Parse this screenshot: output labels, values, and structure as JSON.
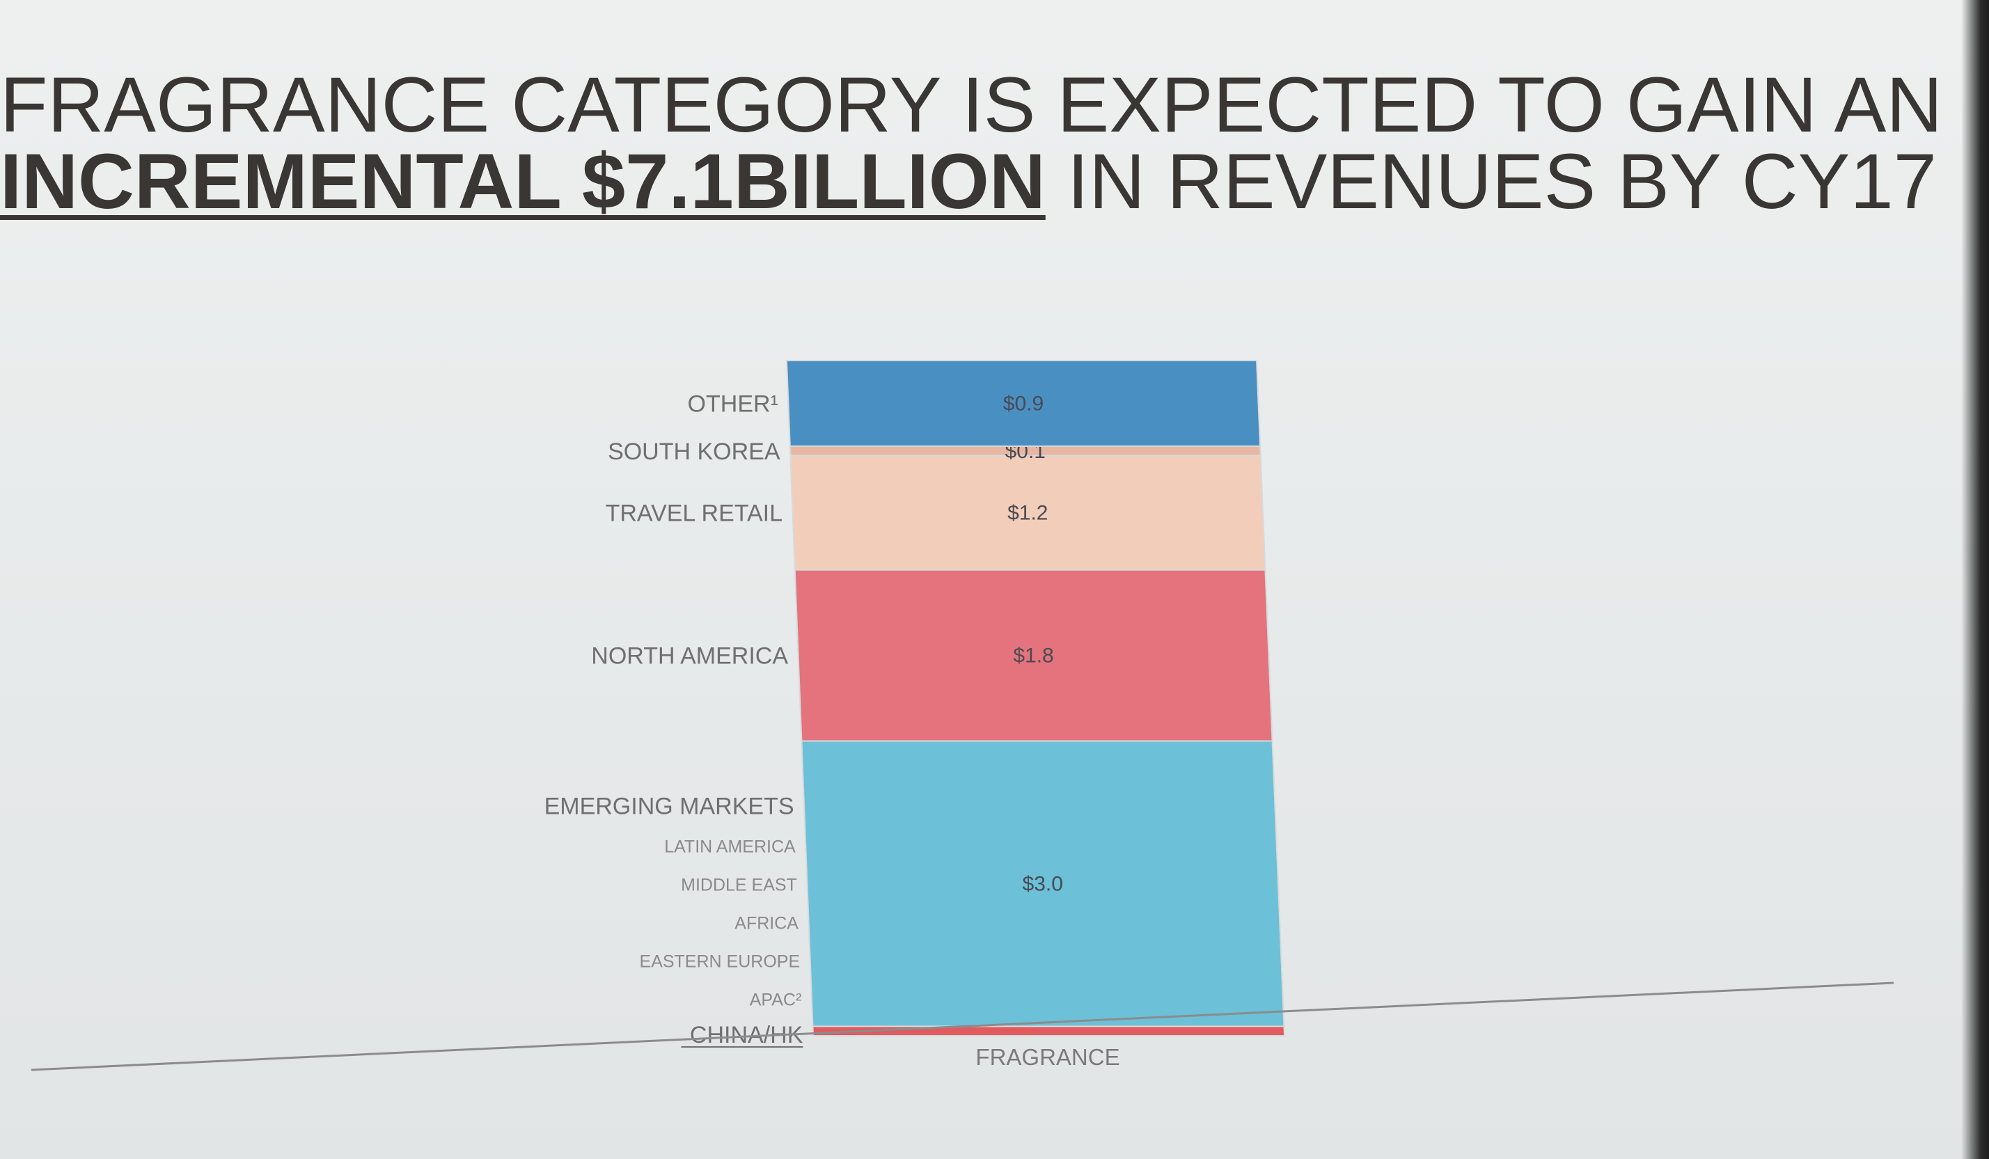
{
  "title": {
    "line1": "FRAGRANCE CATEGORY IS EXPECTED TO GAIN AN",
    "line2_emphasis": "INCREMENTAL $7.1BILLION",
    "line2_rest": " IN REVENUES BY CY17"
  },
  "chart_data": {
    "type": "bar",
    "stacked": true,
    "categories": [
      "FRAGRANCE"
    ],
    "xlabel": "",
    "ylabel": "",
    "grid": false,
    "legend": "none",
    "series": [
      {
        "name": "CHINA/HK",
        "values": [
          0.1
        ],
        "label": "",
        "color": "#e05a5e"
      },
      {
        "name": "EMERGING MARKETS",
        "values": [
          3.0
        ],
        "label": "$3.0",
        "color": "#6cc0d8",
        "sublabels": [
          "LATIN AMERICA",
          "MIDDLE EAST",
          "AFRICA",
          "EASTERN EUROPE",
          "APAC²"
        ]
      },
      {
        "name": "NORTH AMERICA",
        "values": [
          1.8
        ],
        "label": "$1.8",
        "color": "#e4737d"
      },
      {
        "name": "TRAVEL RETAIL",
        "values": [
          1.2
        ],
        "label": "$1.2",
        "color": "#f2cdb9"
      },
      {
        "name": "SOUTH KOREA",
        "values": [
          0.1
        ],
        "label": "$0.1",
        "color": "#e8b7a2"
      },
      {
        "name": "OTHER¹",
        "values": [
          0.9
        ],
        "label": "$0.9",
        "color": "#4a8fc2"
      }
    ]
  }
}
